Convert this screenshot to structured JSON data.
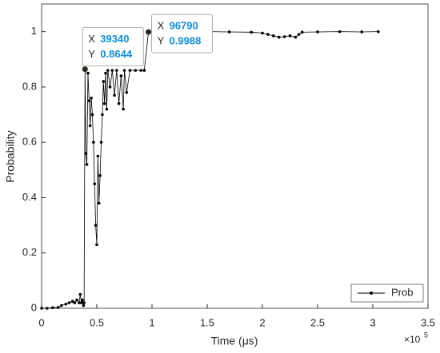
{
  "chart_data": {
    "type": "line",
    "x_label": "Time (μs)",
    "y_label": "Probability",
    "x_exponent": {
      "base": "×10",
      "power": "5"
    },
    "xlim": [
      0,
      350000
    ],
    "xticks": [
      {
        "value": 0,
        "label": "0"
      },
      {
        "value": 50000,
        "label": "0.5"
      },
      {
        "value": 100000,
        "label": "1"
      },
      {
        "value": 150000,
        "label": "1.5"
      },
      {
        "value": 200000,
        "label": "2"
      },
      {
        "value": 250000,
        "label": "2.5"
      },
      {
        "value": 300000,
        "label": "3"
      },
      {
        "value": 350000,
        "label": "3.5"
      }
    ],
    "ylim": [
      0,
      1.1
    ],
    "yticks": [
      0,
      0.2,
      0.4,
      0.6,
      0.8,
      1
    ],
    "legend": "bottom-right",
    "series": [
      {
        "name": "Prob",
        "color": "#000000",
        "x": [
          0,
          5000,
          10000,
          15000,
          18000,
          22000,
          25000,
          28000,
          30000,
          32000,
          34000,
          35000,
          36000,
          37000,
          38000,
          38500,
          39340,
          40000,
          41000,
          42000,
          43000,
          44000,
          45000,
          46000,
          47000,
          48000,
          49000,
          50000,
          51000,
          52000,
          53000,
          54000,
          55000,
          56000,
          57000,
          58000,
          59000,
          60000,
          62000,
          64000,
          66000,
          68000,
          70000,
          72000,
          74000,
          75000,
          77000,
          80000,
          85000,
          90000,
          93000,
          96790,
          110000,
          130000,
          150000,
          170000,
          190000,
          200000,
          205000,
          210000,
          215000,
          220000,
          225000,
          230000,
          233000,
          236000,
          250000,
          270000,
          290000,
          305000
        ],
        "values": [
          0,
          0,
          0.002,
          0.003,
          0.01,
          0.015,
          0.02,
          0.025,
          0.02,
          0.03,
          0.02,
          0.05,
          0.02,
          0.03,
          0.01,
          0.02,
          0.8644,
          0.56,
          0.52,
          0.85,
          0.75,
          0.66,
          0.76,
          0.7,
          0.6,
          0.45,
          0.3,
          0.23,
          0.55,
          0.38,
          0.48,
          0.6,
          0.7,
          0.82,
          0.74,
          0.85,
          0.72,
          0.86,
          0.8,
          0.86,
          0.77,
          0.86,
          0.74,
          0.84,
          0.72,
          0.86,
          0.78,
          0.86,
          0.86,
          0.86,
          0.86,
          0.9988,
          0.999,
          0.999,
          1,
          0.999,
          0.998,
          0.995,
          0.99,
          0.985,
          0.98,
          0.982,
          0.985,
          0.98,
          0.99,
          0.998,
          0.999,
          1,
          0.999,
          1
        ]
      }
    ],
    "datatips": [
      {
        "x_label": "X",
        "x": 39340,
        "y_label": "Y",
        "y": 0.8644
      },
      {
        "x_label": "X",
        "x": 96790,
        "y_label": "Y",
        "y": 0.9988
      }
    ]
  }
}
